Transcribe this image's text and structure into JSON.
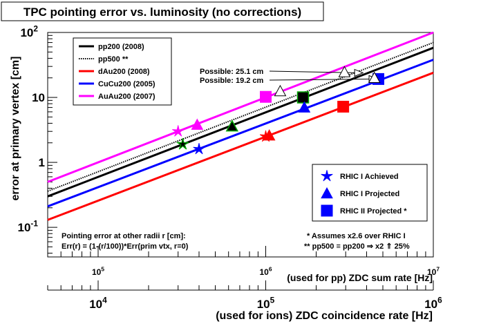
{
  "chart_data": {
    "type": "line",
    "title": "TPC pointing error vs. luminosity (no corrections)",
    "ylabel": "error at primary vertex [cm]",
    "xlabel_ions": "(used for ions) ZDC coincidence rate [Hz]",
    "xlabel_pp": "(used for pp) ZDC sum rate [Hz]",
    "x_scale": "log",
    "y_scale": "log",
    "xlim_ions": [
      5000,
      1000000
    ],
    "xlim_pp": [
      50000,
      10000000
    ],
    "ylim": [
      0.035,
      100
    ],
    "grid": false,
    "y_ticks": [
      {
        "v": 0.1,
        "b": "10",
        "e": "-1"
      },
      {
        "v": 1,
        "b": "1",
        "e": ""
      },
      {
        "v": 10,
        "b": "10",
        "e": ""
      },
      {
        "v": 100,
        "b": "10",
        "e": "2"
      }
    ],
    "x_ticks_ions": [
      {
        "v": 10000,
        "b": "10",
        "e": "4"
      },
      {
        "v": 100000,
        "b": "10",
        "e": "5"
      },
      {
        "v": 1000000,
        "b": "10",
        "e": "6"
      }
    ],
    "x_ticks_pp": [
      {
        "v": 100000,
        "b": "10",
        "e": "5"
      },
      {
        "v": 1000000,
        "b": "10",
        "e": "6"
      },
      {
        "v": 10000000,
        "b": "10",
        "e": "7"
      }
    ],
    "series": [
      {
        "name": "pp200 (2008)",
        "color": "#000000",
        "dash": "solid",
        "points": [
          [
            5000,
            0.3
          ],
          [
            1000000,
            58
          ]
        ]
      },
      {
        "name": "pp500 **",
        "color": "#000000",
        "dash": "dotted",
        "points": [
          [
            5000,
            0.36
          ],
          [
            1000000,
            70
          ]
        ]
      },
      {
        "name": "dAu200 (2008)",
        "color": "#ff0000",
        "dash": "solid",
        "points": [
          [
            5000,
            0.13
          ],
          [
            1000000,
            24
          ]
        ]
      },
      {
        "name": "CuCu200 (2005)",
        "color": "#0000ff",
        "dash": "solid",
        "points": [
          [
            5000,
            0.21
          ],
          [
            1000000,
            38
          ]
        ]
      },
      {
        "name": "AuAu200 (2007)",
        "color": "#ff00ff",
        "dash": "solid",
        "points": [
          [
            5000,
            0.5
          ],
          [
            1000000,
            100
          ]
        ]
      }
    ],
    "markers": [
      {
        "shape": "star",
        "color": "#ff00ff",
        "x": 30000,
        "y": 3.0
      },
      {
        "shape": "triangle",
        "color": "#ff00ff",
        "x": 39000,
        "y": 3.8
      },
      {
        "shape": "square",
        "color": "#ff00ff",
        "x": 100000,
        "y": 10.2
      },
      {
        "shape": "star",
        "color": "#000000",
        "x": 32000,
        "y": 1.9,
        "edge": "#00aa00"
      },
      {
        "shape": "triangle",
        "color": "#000000",
        "x": 63000,
        "y": 3.6,
        "edge": "#00aa00"
      },
      {
        "shape": "square",
        "color": "#000000",
        "x": 167000,
        "y": 10.0,
        "edge": "#00aa00"
      },
      {
        "shape": "star",
        "color": "#0000ff",
        "x": 40000,
        "y": 1.6
      },
      {
        "shape": "triangle",
        "color": "#0000ff",
        "x": 170000,
        "y": 7.0
      },
      {
        "shape": "square",
        "color": "#0000ff",
        "x": 470000,
        "y": 19.2
      },
      {
        "shape": "star",
        "color": "#ff0000",
        "x": 100000,
        "y": 2.5
      },
      {
        "shape": "triangle",
        "color": "#ff0000",
        "x": 105000,
        "y": 2.6
      },
      {
        "shape": "square",
        "color": "#ff0000",
        "x": 290000,
        "y": 7.2
      },
      {
        "shape": "triangle-open",
        "color": "#000000",
        "x": 122000,
        "y": 12.5
      },
      {
        "shape": "triangle-open",
        "color": "#000000",
        "x": 295000,
        "y": 24.5
      },
      {
        "shape": "triangle-open",
        "color": "#000000",
        "x": 445000,
        "y": 20.0
      }
    ],
    "annotations": {
      "possible_1": {
        "text": "Possible: 25.1 cm",
        "x": 380000,
        "y": 25.1
      },
      "possible_2": {
        "text": "Possible: 19.2 cm",
        "x": 500000,
        "y": 19.2
      },
      "radii_line1": "Pointing error at other radii r [cm]:",
      "radii_line2": "Err(r) = (1-(r/100))*Err(prim vtx, r=0)",
      "assume_line1": "* Assumes x2.6 over RHIC I",
      "assume_line2": "** pp500 ≡ pp200 ⇒ x2 ⇑ 25%"
    },
    "marker_legend": [
      {
        "shape": "star",
        "label": "RHIC I Achieved"
      },
      {
        "shape": "triangle",
        "label": "RHIC I Projected"
      },
      {
        "shape": "square",
        "label": "RHIC II Projected *"
      }
    ],
    "marker_legend_color": "#0000ff",
    "legend_position": "top-left"
  }
}
